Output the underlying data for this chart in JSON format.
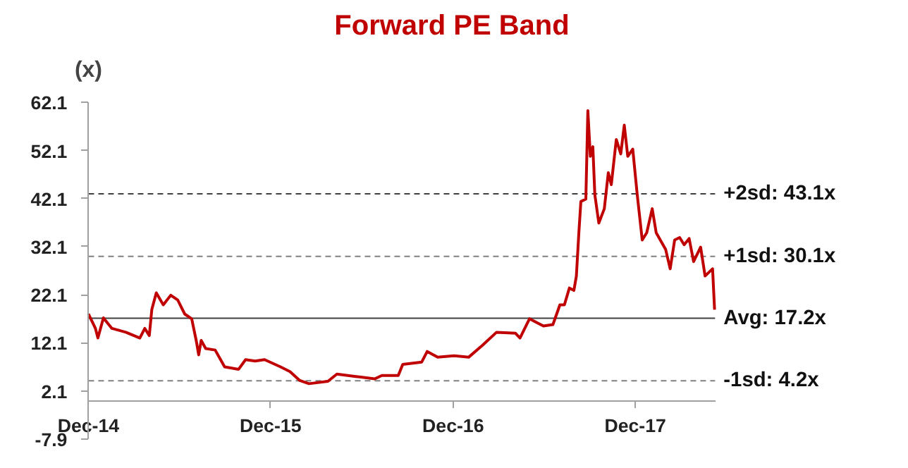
{
  "chart_data": {
    "type": "line",
    "title": "Forward PE Band",
    "ylabel": "(x)",
    "x": [
      "2014-12-01",
      "2014-12-15",
      "2014-12-20",
      "2014-12-31",
      "2015-01-17",
      "2015-02-14",
      "2015-03-14",
      "2015-03-24",
      "2015-04-02",
      "2015-04-07",
      "2015-04-16",
      "2015-04-30",
      "2015-05-15",
      "2015-05-29",
      "2015-06-12",
      "2015-06-26",
      "2015-07-05",
      "2015-07-10",
      "2015-07-15",
      "2015-07-24",
      "2015-08-12",
      "2015-08-31",
      "2015-09-28",
      "2015-10-12",
      "2015-10-31",
      "2015-11-19",
      "2015-12-21",
      "2016-01-09",
      "2016-01-28",
      "2016-02-16",
      "2016-03-25",
      "2016-04-12",
      "2016-05-20",
      "2016-06-27",
      "2016-07-11",
      "2016-08-13",
      "2016-08-22",
      "2016-09-29",
      "2016-10-10",
      "2016-10-31",
      "2016-12-03",
      "2017-01-01",
      "2017-01-29",
      "2017-02-26",
      "2017-04-05",
      "2017-04-14",
      "2017-05-03",
      "2017-05-31",
      "2017-06-19",
      "2017-07-03",
      "2017-07-12",
      "2017-07-22",
      "2017-07-31",
      "2017-08-05",
      "2017-08-10",
      "2017-08-14",
      "2017-08-24",
      "2017-08-28",
      "2017-09-02",
      "2017-09-07",
      "2017-09-11",
      "2017-09-19",
      "2017-09-30",
      "2017-10-08",
      "2017-10-14",
      "2017-10-24",
      "2017-11-02",
      "2017-11-09",
      "2017-11-16",
      "2017-11-26",
      "2017-12-05",
      "2017-12-15",
      "2017-12-24",
      "2018-01-04",
      "2018-01-12",
      "2018-01-31",
      "2018-02-09",
      "2018-02-18",
      "2018-02-28",
      "2018-03-09",
      "2018-03-19",
      "2018-03-28",
      "2018-04-11",
      "2018-04-20",
      "2018-05-05",
      "2018-05-09"
    ],
    "series": [
      {
        "color": "#c00000",
        "values": [
          18.1,
          15.1,
          13.1,
          17.3,
          15.1,
          14.3,
          13.1,
          15.1,
          13.6,
          19.0,
          22.5,
          20.0,
          22.0,
          21.0,
          18.1,
          17.1,
          12.6,
          9.6,
          12.6,
          10.9,
          10.6,
          7.1,
          6.6,
          8.6,
          8.3,
          8.6,
          7.1,
          6.1,
          4.3,
          3.6,
          4.1,
          5.6,
          5.1,
          4.6,
          5.3,
          5.3,
          7.6,
          8.1,
          10.3,
          9.1,
          9.4,
          9.1,
          11.6,
          14.3,
          14.1,
          13.1,
          17.1,
          15.6,
          15.9,
          20.0,
          20.0,
          23.5,
          23.0,
          26.0,
          35.0,
          41.5,
          42.0,
          60.4,
          50.9,
          52.9,
          42.9,
          37.0,
          40.0,
          47.5,
          45.0,
          54.4,
          51.4,
          57.4,
          50.9,
          52.4,
          42.9,
          33.5,
          35.0,
          40.0,
          35.0,
          31.5,
          27.5,
          33.5,
          34.0,
          32.5,
          33.8,
          29.0,
          32.0,
          26.0,
          27.5,
          19.0
        ]
      }
    ],
    "xlim": [
      "2014-12-01",
      "2018-05-10"
    ],
    "xticks": [
      {
        "value": "2014-12-01",
        "label": "Dec-14"
      },
      {
        "value": "2015-12-01",
        "label": "Dec-15"
      },
      {
        "value": "2016-12-01",
        "label": "Dec-16"
      },
      {
        "value": "2017-12-01",
        "label": "Dec-17"
      }
    ],
    "ylim": [
      -7.9,
      62.1
    ],
    "yticks": [
      -7.9,
      2.1,
      12.1,
      22.1,
      32.1,
      42.1,
      52.1,
      62.1
    ],
    "ref_lines": [
      {
        "axis": "y",
        "value": 43.1,
        "label": "+2sd: 43.1x",
        "line_style": "dashed",
        "color": "#404040"
      },
      {
        "axis": "y",
        "value": 30.1,
        "label": "+1sd: 30.1x",
        "line_style": "dashed",
        "color": "#808080"
      },
      {
        "axis": "y",
        "value": 17.2,
        "label": "Avg: 17.2x",
        "line_style": "solid",
        "color": "#404040"
      },
      {
        "axis": "y",
        "value": 4.2,
        "label": "-1sd: 4.2x",
        "line_style": "dashed",
        "color": "#808080"
      }
    ],
    "marker": "none",
    "line_style": "solid"
  }
}
